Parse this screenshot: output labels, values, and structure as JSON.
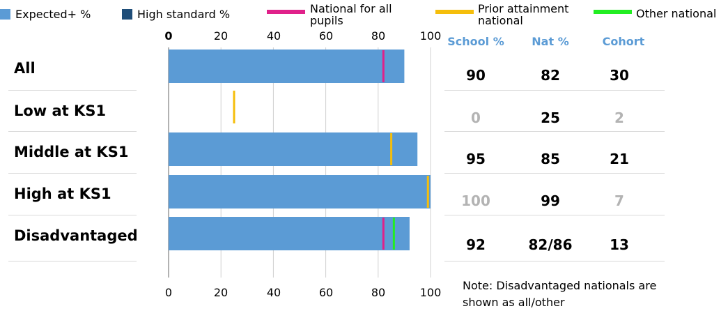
{
  "legend": [
    {
      "label": "Expected+ %",
      "color": "#5b9bd5",
      "kind": "box"
    },
    {
      "label": "High standard %",
      "color": "#1f4e79",
      "kind": "box"
    },
    {
      "label": "National for all pupils",
      "color": "#e0218a",
      "kind": "line"
    },
    {
      "label": "Prior attainment national",
      "color": "#f5be0b",
      "kind": "line"
    },
    {
      "label": "Other national",
      "color": "#22ee22",
      "kind": "line"
    }
  ],
  "table": {
    "headers": [
      "School %",
      "Nat %",
      "Cohort"
    ],
    "rows": [
      {
        "school": "90",
        "nat": "82",
        "cohort": "30",
        "dim": false
      },
      {
        "school": "0",
        "nat": "25",
        "cohort": "2",
        "dim": true
      },
      {
        "school": "95",
        "nat": "85",
        "cohort": "21",
        "dim": false
      },
      {
        "school": "100",
        "nat": "99",
        "cohort": "7",
        "dim": true
      },
      {
        "school": "92",
        "nat": "82/86",
        "cohort": "13",
        "dim": false
      }
    ]
  },
  "note": "Note: Disadvantaged nationals are shown as all/other",
  "chart_data": {
    "type": "bar",
    "orientation": "horizontal",
    "categories": [
      "All",
      "Low at KS1",
      "Middle at KS1",
      "High at KS1",
      "Disadvantaged"
    ],
    "series": [
      {
        "name": "Expected+ %",
        "color": "#5b9bd5",
        "values": [
          90,
          0,
          95,
          100,
          92
        ]
      }
    ],
    "markers": [
      {
        "name": "National for all pupils",
        "color": "#e0218a",
        "values": [
          82,
          null,
          null,
          null,
          82
        ]
      },
      {
        "name": "Prior attainment national",
        "color": "#f5be0b",
        "values": [
          null,
          25,
          85,
          99,
          null
        ]
      },
      {
        "name": "Other national",
        "color": "#22ee22",
        "values": [
          null,
          null,
          null,
          null,
          86
        ]
      }
    ],
    "xlim": [
      0,
      100
    ],
    "xticks": [
      "0",
      "20",
      "40",
      "60",
      "80",
      "100"
    ],
    "grid": true,
    "legend_position": "top"
  }
}
